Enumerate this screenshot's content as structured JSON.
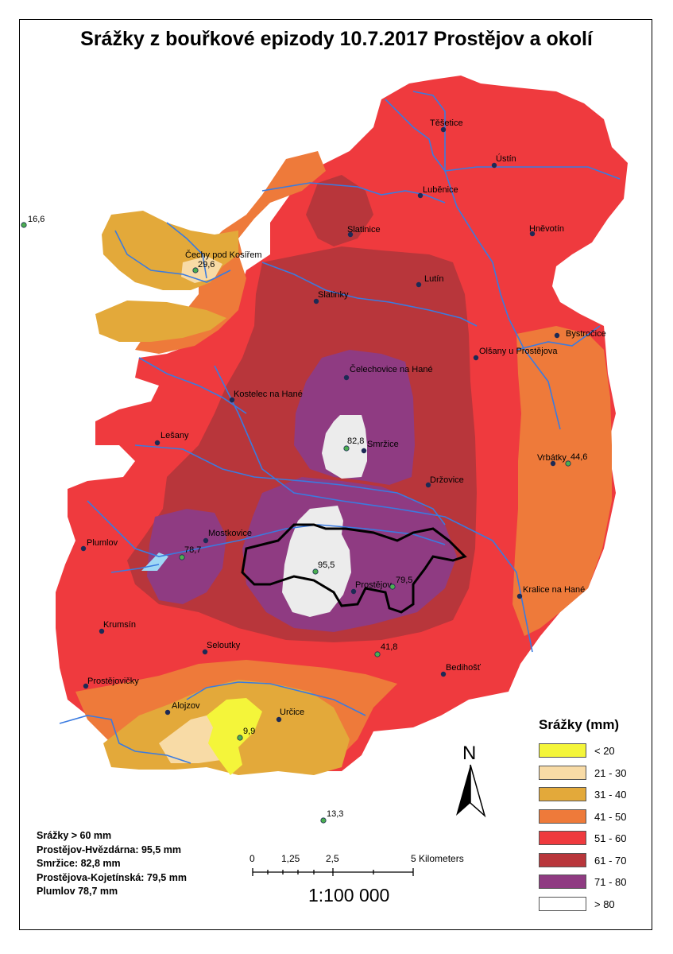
{
  "title": "Srážky z bouřkové epizody 10.7.2017 Prostějov a okolí",
  "places": [
    {
      "name": "Těšetice"
    },
    {
      "name": "Ústín"
    },
    {
      "name": "Luběnice"
    },
    {
      "name": "Hněvotín"
    },
    {
      "name": "Slatinice"
    },
    {
      "name": "Čechy pod Kosířem"
    },
    {
      "name": "Lutín"
    },
    {
      "name": "Slatinky"
    },
    {
      "name": "Bystročice"
    },
    {
      "name": "Olšany u Prostějova"
    },
    {
      "name": "Čelechovice na Hané"
    },
    {
      "name": "Kostelec na Hané"
    },
    {
      "name": "Lešany"
    },
    {
      "name": "Smržice"
    },
    {
      "name": "Vrbátky"
    },
    {
      "name": "Držovice"
    },
    {
      "name": "Mostkovice"
    },
    {
      "name": "Plumlov"
    },
    {
      "name": "Prostějov"
    },
    {
      "name": "Kralice na Hané"
    },
    {
      "name": "Krumsín"
    },
    {
      "name": "Seloutky"
    },
    {
      "name": "Bedihošť"
    },
    {
      "name": "Prostějovičky"
    },
    {
      "name": "Alojzov"
    },
    {
      "name": "Určice"
    }
  ],
  "stations": [
    {
      "value": "16,6"
    },
    {
      "value": "29,6"
    },
    {
      "value": "82,8"
    },
    {
      "value": "44,6"
    },
    {
      "value": "78,7"
    },
    {
      "value": "95,5"
    },
    {
      "value": "79,5"
    },
    {
      "value": "41,8"
    },
    {
      "value": "9,9"
    },
    {
      "value": "13,3"
    }
  ],
  "legend": {
    "title": "Srážky (mm)",
    "items": [
      {
        "label": "< 20",
        "color": "#f4f53a"
      },
      {
        "label": "21 - 30",
        "color": "#f8dba6"
      },
      {
        "label": "31 - 40",
        "color": "#e3a93a"
      },
      {
        "label": "41 - 50",
        "color": "#ee7a3a"
      },
      {
        "label": "51 - 60",
        "color": "#ef3a3e"
      },
      {
        "label": "61 - 70",
        "color": "#b8363b"
      },
      {
        "label": "71 - 80",
        "color": "#8f3b82"
      },
      {
        "label": "> 80",
        "color": "#ffffff"
      }
    ]
  },
  "north_label": "N",
  "scale": {
    "ticks": [
      "0",
      "1,25",
      "2,5",
      "5 Kilometers"
    ],
    "ratio": "1:100 000"
  },
  "notes": [
    "Srážky > 60 mm",
    "Prostějov-Hvězdárna: 95,5 mm",
    "Smržice: 82,8 mm",
    "Prostějova-Kojetínská: 79,5 mm",
    "Plumlov 78,7 mm"
  ],
  "colors": {
    "river": "#3a7be0",
    "town_dot": "#1d2a55",
    "station_dot": "#4caf50",
    "city_outline": "#000000"
  }
}
